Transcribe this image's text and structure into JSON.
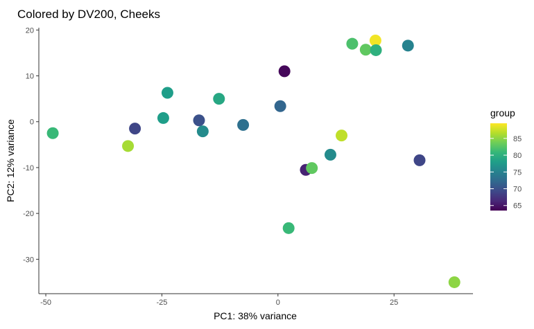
{
  "chart_data": {
    "type": "scatter",
    "title": "Colored by DV200, Cheeks",
    "xlabel": "PC1: 38% variance",
    "ylabel": "PC2: 12% variance",
    "xlim": [
      -51.5,
      42
    ],
    "ylim": [
      -37.5,
      20.5
    ],
    "x_ticks": [
      -50,
      -25,
      0,
      25
    ],
    "x_tick_labels": [
      "-50",
      "-25",
      "0",
      "25"
    ],
    "y_ticks": [
      -30,
      -20,
      -10,
      0,
      10,
      20
    ],
    "y_tick_labels": [
      "-30",
      "-20",
      "-10",
      "0",
      "10",
      "20"
    ],
    "grid": false,
    "legend": {
      "title": "group",
      "placement": "right",
      "type": "colorbar",
      "ticks": [
        65,
        70,
        75,
        80,
        85
      ],
      "tick_labels": [
        "65",
        "70",
        "75",
        "80",
        "85"
      ],
      "range": [
        63.5,
        89.5
      ]
    },
    "colormap": "viridis",
    "points": [
      {
        "x": -48.5,
        "y": -2.5,
        "group": 81
      },
      {
        "x": -32.3,
        "y": -5.3,
        "group": 86
      },
      {
        "x": -30.8,
        "y": -1.5,
        "group": 69
      },
      {
        "x": -24.7,
        "y": 0.8,
        "group": 78
      },
      {
        "x": -23.8,
        "y": 6.3,
        "group": 78
      },
      {
        "x": -17.0,
        "y": 0.3,
        "group": 70
      },
      {
        "x": -16.2,
        "y": -2.1,
        "group": 76
      },
      {
        "x": -12.7,
        "y": 5.0,
        "group": 79
      },
      {
        "x": -7.5,
        "y": -0.7,
        "group": 73
      },
      {
        "x": 0.5,
        "y": 3.4,
        "group": 72
      },
      {
        "x": 1.4,
        "y": 11.0,
        "group": 64
      },
      {
        "x": 2.3,
        "y": -23.2,
        "group": 81
      },
      {
        "x": 6.0,
        "y": -10.5,
        "group": 66
      },
      {
        "x": 7.3,
        "y": -10.1,
        "group": 83
      },
      {
        "x": 11.3,
        "y": -7.2,
        "group": 76
      },
      {
        "x": 13.7,
        "y": -3.0,
        "group": 87
      },
      {
        "x": 16.0,
        "y": 17.0,
        "group": 82
      },
      {
        "x": 18.9,
        "y": 15.7,
        "group": 83
      },
      {
        "x": 21.0,
        "y": 17.7,
        "group": 89
      },
      {
        "x": 21.1,
        "y": 15.6,
        "group": 80
      },
      {
        "x": 28.0,
        "y": 16.6,
        "group": 75
      },
      {
        "x": 30.5,
        "y": -8.4,
        "group": 69
      },
      {
        "x": 38.0,
        "y": -35.0,
        "group": 85
      }
    ]
  }
}
